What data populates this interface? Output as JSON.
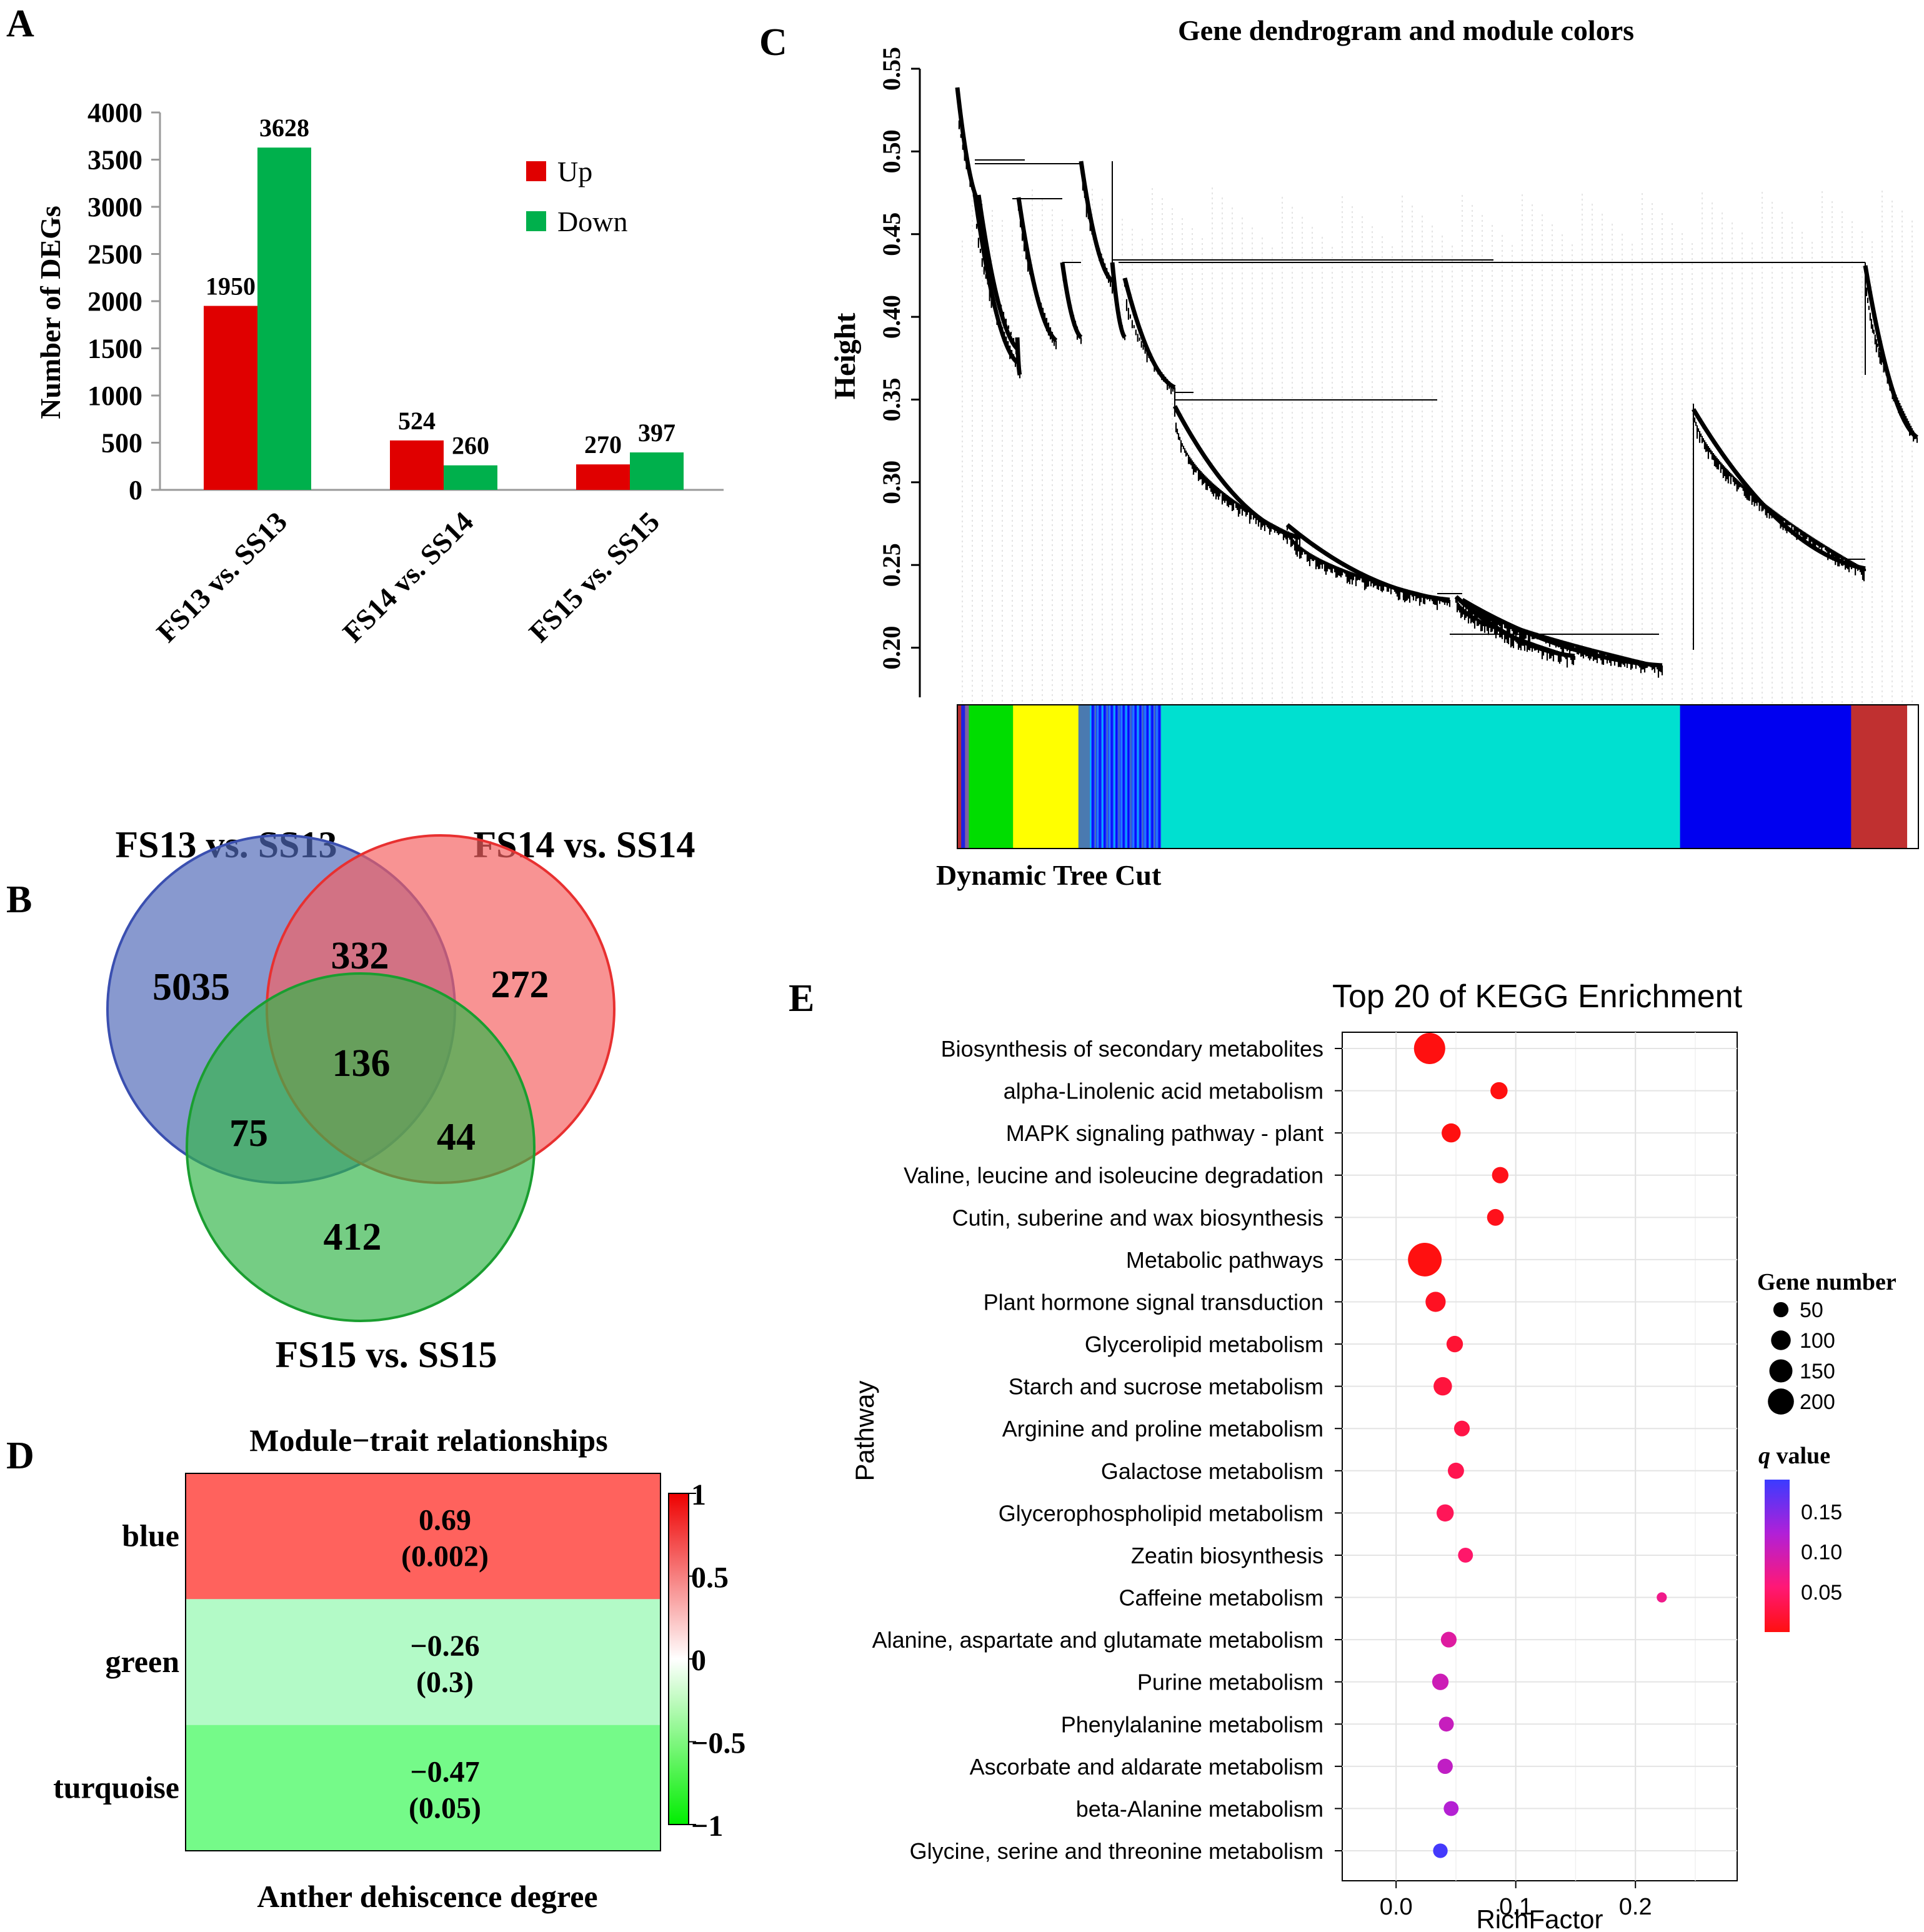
{
  "panel_labels": {
    "a": "A",
    "b": "B",
    "c": "C",
    "d": "D",
    "e": "E"
  },
  "colors": {
    "up": "#e00000",
    "down": "#00b04c",
    "venn_blue": "#4f68b8",
    "venn_red": "#f56060",
    "venn_green": "#33b54a"
  },
  "chart_data": [
    {
      "id": "A",
      "type": "bar",
      "title": "",
      "ylabel": "Number of DEGs",
      "xlabel": "",
      "ylim": [
        0,
        4000
      ],
      "yticks": [
        0,
        500,
        1000,
        1500,
        2000,
        2500,
        3000,
        3500,
        4000
      ],
      "categories": [
        "FS13 vs. SS13",
        "FS14 vs. SS14",
        "FS15 vs. SS15"
      ],
      "series": [
        {
          "name": "Up",
          "color": "#e00000",
          "values": [
            1950,
            524,
            270
          ]
        },
        {
          "name": "Down",
          "color": "#00b04c",
          "values": [
            3628,
            260,
            397
          ]
        }
      ],
      "legend_position": "top-right"
    },
    {
      "id": "B",
      "type": "venn",
      "sets": [
        "FS13 vs. SS13",
        "FS14 vs. SS14",
        "FS15 vs. SS15"
      ],
      "regions": {
        "only_fs13": 5035,
        "only_fs14": 272,
        "only_fs15": 412,
        "fs13_fs14": 332,
        "fs13_fs15": 75,
        "fs14_fs15": 44,
        "all": 136
      }
    },
    {
      "id": "C",
      "type": "dendrogram",
      "title": "Gene dendrogram and module colors",
      "ylabel": "Height",
      "ylim": [
        0.17,
        0.55
      ],
      "yticks": [
        0.2,
        0.25,
        0.3,
        0.35,
        0.4,
        0.45,
        0.5,
        0.55
      ],
      "color_bar_label": "Dynamic Tree Cut",
      "module_segments": [
        {
          "module": "brown",
          "color": "#b83030",
          "share": 0.004
        },
        {
          "module": "blue",
          "color": "#2020e0",
          "share": 0.004
        },
        {
          "module": "mixed",
          "color": "#8060a0",
          "share": 0.004
        },
        {
          "module": "green",
          "color": "#00dd00",
          "share": 0.046
        },
        {
          "module": "yellow",
          "color": "#ffff00",
          "share": 0.068
        },
        {
          "module": "mixed",
          "color": "#4a7ab0",
          "share": 0.012
        },
        {
          "module": "blue-mixed",
          "color": "#1e40ff",
          "share": 0.074
        },
        {
          "module": "turquoise",
          "color": "#00e0d0",
          "share": 0.54
        },
        {
          "module": "blue",
          "color": "#0000f0",
          "share": 0.178
        },
        {
          "module": "brown",
          "color": "#c03030",
          "share": 0.058
        }
      ]
    },
    {
      "id": "D",
      "type": "heatmap",
      "title": "Module−trait relationships",
      "xlabel": "Anther dehiscence degree",
      "rows": [
        "blue",
        "green",
        "turquoise"
      ],
      "values": [
        0.69,
        -0.26,
        -0.47
      ],
      "cell_labels": [
        "0.69",
        "−0.26",
        "−0.47"
      ],
      "pvalue_labels": [
        "(0.002)",
        "(0.3)",
        "(0.05)"
      ],
      "colorbar_ticks": [
        "1",
        "0.5",
        "0",
        "−0.5",
        "−1"
      ],
      "colorbar_range": [
        -1,
        1
      ]
    },
    {
      "id": "E",
      "type": "scatter",
      "title": "Top 20 of KEGG Enrichment",
      "xlabel": "RichFactor",
      "ylabel": "Pathway",
      "xlim": [
        -0.045,
        0.285
      ],
      "xticks": [
        0.0,
        0.1,
        0.2
      ],
      "xtick_labels": [
        "0.0",
        "0.1",
        "0.2"
      ],
      "size_legend_title": "Gene number",
      "size_legend": [
        50,
        100,
        150,
        200
      ],
      "color_legend_title_symbol": "q",
      "color_legend_title_text": " value",
      "color_legend_ticks": [
        "0.15",
        "0.10",
        "0.05"
      ],
      "color_range": [
        0.0,
        0.19
      ],
      "pathways": [
        "Biosynthesis of secondary metabolites",
        "alpha-Linolenic acid metabolism",
        "MAPK signaling pathway - plant",
        "Valine, leucine and isoleucine degradation",
        "Cutin, suberine and wax biosynthesis",
        "Metabolic pathways",
        "Plant hormone signal transduction",
        "Glycerolipid metabolism",
        "Starch and sucrose metabolism",
        "Arginine and proline metabolism",
        "Galactose metabolism",
        "Glycerophospholipid metabolism",
        "Zeatin biosynthesis",
        "Caffeine metabolism",
        "Alanine, aspartate and glutamate metabolism",
        "Purine metabolism",
        "Phenylalanine metabolism",
        "Ascorbate and aldarate metabolism",
        "beta-Alanine metabolism",
        "Glycine, serine and threonine metabolism"
      ],
      "rich_factor": [
        0.028,
        0.086,
        0.046,
        0.087,
        0.083,
        0.024,
        0.033,
        0.049,
        0.039,
        0.055,
        0.05,
        0.041,
        0.058,
        0.222,
        0.044,
        0.037,
        0.042,
        0.041,
        0.046,
        0.037
      ],
      "gene_number": [
        210,
        45,
        60,
        40,
        42,
        250,
        70,
        40,
        55,
        35,
        38,
        45,
        30,
        8,
        35,
        40,
        30,
        32,
        30,
        28
      ],
      "q_value": [
        0.0,
        0.0,
        0.0,
        0.005,
        0.006,
        0.0,
        0.01,
        0.02,
        0.025,
        0.03,
        0.035,
        0.04,
        0.05,
        0.07,
        0.085,
        0.1,
        0.105,
        0.11,
        0.12,
        0.185
      ]
    }
  ]
}
